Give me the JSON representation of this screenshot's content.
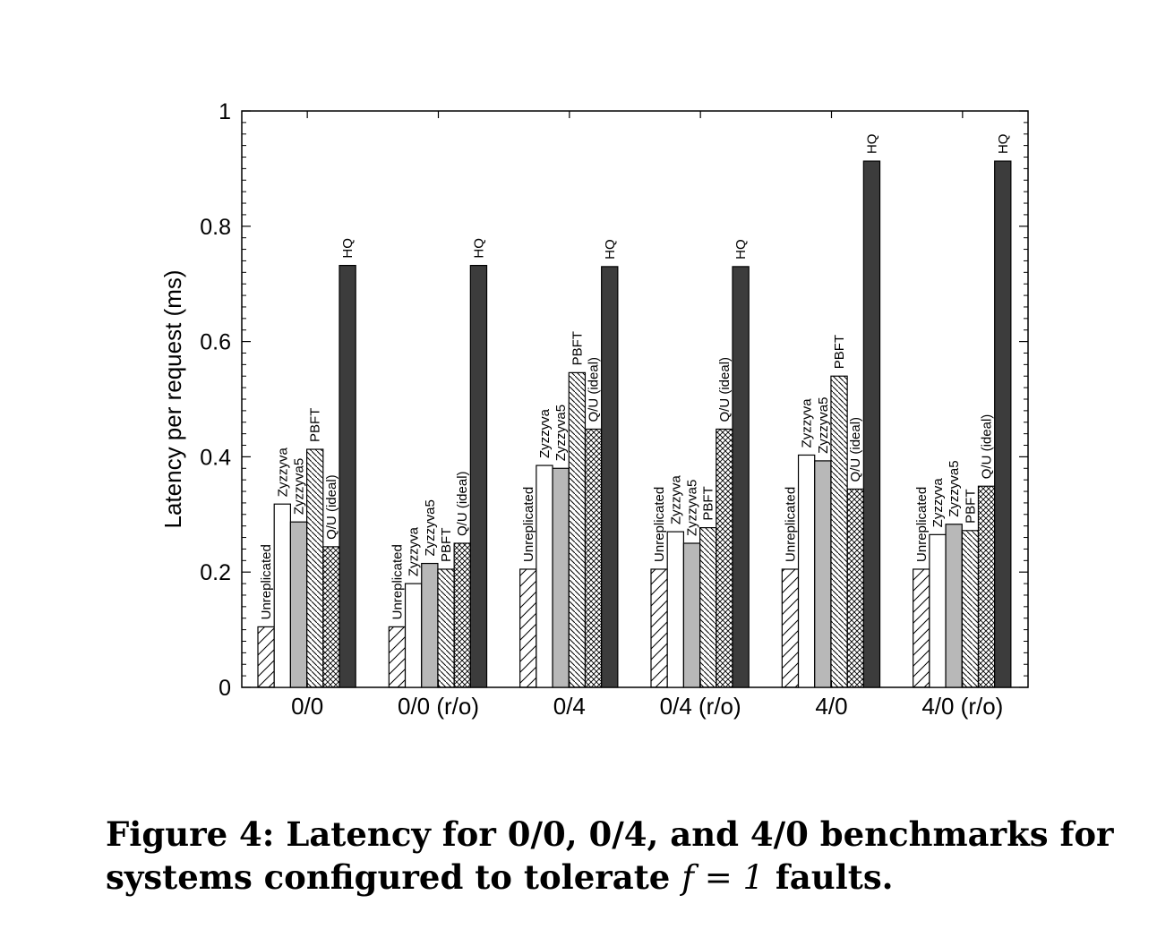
{
  "chart_data": {
    "type": "bar",
    "title": "",
    "xlabel": "",
    "ylabel": "Latency per request (ms)",
    "ylim": [
      0,
      1
    ],
    "yticks": [
      "0",
      "0.2",
      "0.4",
      "0.6",
      "0.8",
      "1"
    ],
    "categories": [
      "0/0",
      "0/0 (r/o)",
      "0/4",
      "0/4 (r/o)",
      "4/0",
      "4/0 (r/o)"
    ],
    "series": [
      {
        "name": "Unreplicated",
        "values": [
          0.105,
          0.105,
          0.205,
          0.205,
          0.205,
          0.205
        ]
      },
      {
        "name": "Zyzzyva",
        "values": [
          0.318,
          0.18,
          0.385,
          0.27,
          0.403,
          0.265
        ]
      },
      {
        "name": "Zyzzyva5",
        "values": [
          0.287,
          0.215,
          0.38,
          0.25,
          0.393,
          0.283
        ]
      },
      {
        "name": "PBFT",
        "values": [
          0.413,
          0.205,
          0.546,
          0.277,
          0.54,
          0.272
        ]
      },
      {
        "name": "Q/U (ideal)",
        "values": [
          0.244,
          0.25,
          0.448,
          0.448,
          0.344,
          0.349
        ]
      },
      {
        "name": "HQ",
        "values": [
          0.732,
          0.732,
          0.73,
          0.73,
          0.913,
          0.913
        ]
      }
    ],
    "bar_labels_per_group": [
      [
        "Unreplicated",
        "Zyzzyva",
        "Zyzzyva5",
        "PBFT",
        "Q/U (ideal)",
        "HQ"
      ],
      [
        "Unreplicated",
        "Zyzzyva",
        "Zyzzyva5",
        "PBFT",
        "Q/U (ideal)",
        "HQ"
      ],
      [
        "Unreplicated",
        "Zyzzyva",
        "Zyzzyva5",
        "PBFT",
        "Q/U (ideal)",
        "HQ"
      ],
      [
        "Unreplicated",
        "Zyzzyva",
        "Zyzzyva5",
        "PBFT",
        "Q/U (ideal)",
        "HQ"
      ],
      [
        "Unreplicated",
        "Zyzzyva",
        "Zyzzyva5",
        "PBFT",
        "Q/U (ideal)",
        "HQ"
      ],
      [
        "Unreplicated",
        "Zyzzyva",
        "Zyzzyva5",
        "PBFT",
        "Q/U (ideal)",
        "HQ"
      ]
    ],
    "fills": [
      "hatch-forward",
      "white",
      "#b8b8b8",
      "hatch-back-dense",
      "crosshatch",
      "#3c3c3c"
    ],
    "grid": false,
    "legend": "none (bars labelled directly)"
  },
  "caption": {
    "prefix": "Figure 4:",
    "text_before_math": "Latency for 0/0, 0/4, and 4/0 benchmarks for systems configured to tolerate",
    "math": "f = 1",
    "text_after_math": "faults."
  }
}
